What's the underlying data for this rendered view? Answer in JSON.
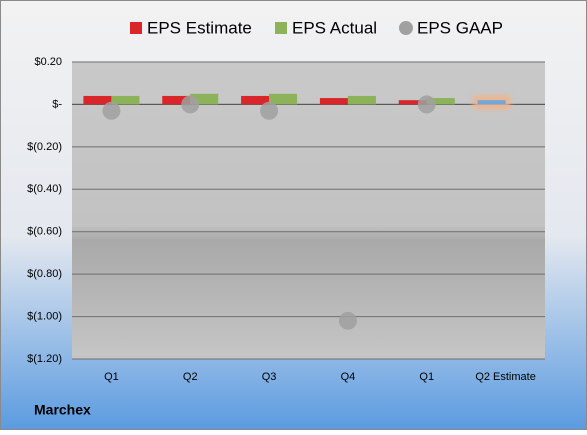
{
  "chart_data": {
    "type": "bar",
    "footer": "Marchex",
    "categories": [
      "Q1",
      "Q2",
      "Q3",
      "Q4",
      "Q1",
      "Q2 Estimate"
    ],
    "series": [
      {
        "name": "EPS Estimate",
        "color": "#d9262b",
        "point_colors": [
          "#d9262b",
          "#d9262b",
          "#d9262b",
          "#d9262b",
          "#d9262b",
          "#6fa8dc"
        ],
        "glow_color": "#f4b183",
        "values": [
          0.04,
          0.04,
          0.04,
          0.03,
          0.02,
          0.02
        ]
      },
      {
        "name": "EPS Actual",
        "color": "#8cb25a",
        "values": [
          0.04,
          0.05,
          0.05,
          0.04,
          0.03,
          null
        ]
      },
      {
        "name": "EPS GAAP",
        "color": "#a0a0a0",
        "marker": "circle",
        "values": [
          -0.03,
          0.0,
          -0.03,
          -1.02,
          0.0,
          null
        ]
      }
    ],
    "ylim": [
      -1.2,
      0.2
    ],
    "yticks": [
      {
        "value": 0.2,
        "label": "$0.20"
      },
      {
        "value": 0,
        "label": "$-"
      },
      {
        "value": -0.2,
        "label": "$(0.20)"
      },
      {
        "value": -0.4,
        "label": "$(0.40)"
      },
      {
        "value": -0.6,
        "label": "$(0.60)"
      },
      {
        "value": -0.8,
        "label": "$(0.80)"
      },
      {
        "value": -1.0,
        "label": "$(1.00)"
      },
      {
        "value": -1.2,
        "label": "$(1.20)"
      }
    ],
    "grid": true
  }
}
